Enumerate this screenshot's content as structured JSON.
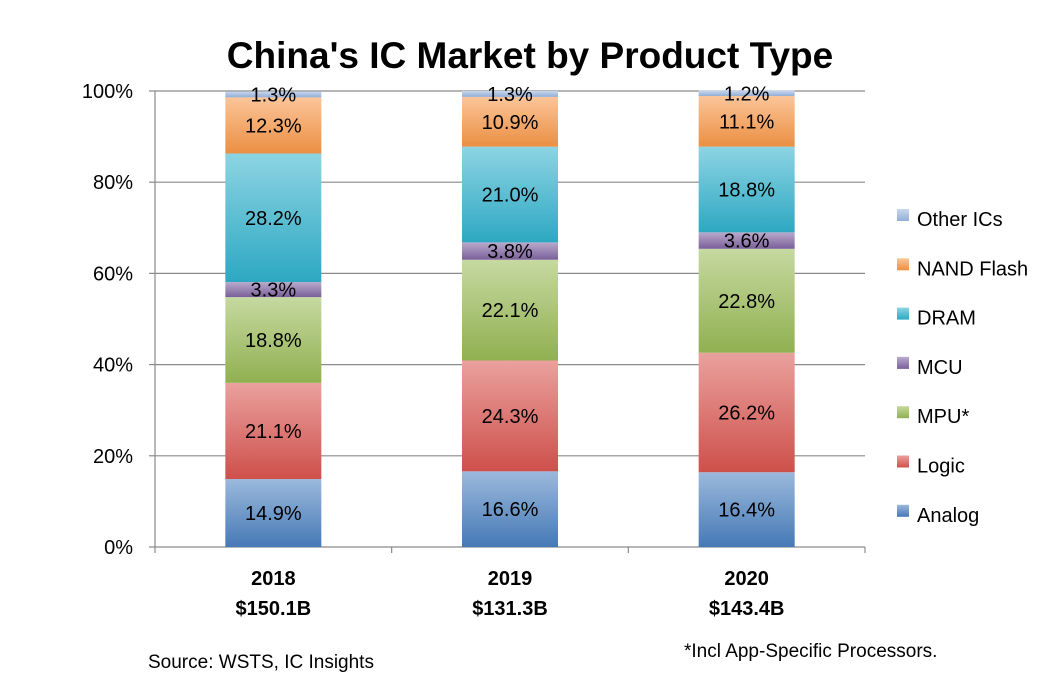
{
  "chart_data": {
    "type": "bar",
    "stacked": true,
    "title": "China's IC Market by Product Type",
    "categories": [
      "2018",
      "2019",
      "2020"
    ],
    "category_totals": [
      "$150.1B",
      "$131.3B",
      "$143.4B"
    ],
    "ylim": [
      0,
      100
    ],
    "yticks": [
      "0%",
      "20%",
      "40%",
      "60%",
      "80%",
      "100%"
    ],
    "grid": true,
    "legend_position": "right",
    "series": [
      {
        "name": "Analog",
        "values": [
          14.9,
          16.6,
          16.4
        ],
        "labels": [
          "14.9%",
          "16.6%",
          "16.4%"
        ],
        "color": "#4a7fc0"
      },
      {
        "name": "Logic",
        "values": [
          21.1,
          24.3,
          26.2
        ],
        "labels": [
          "21.1%",
          "24.3%",
          "26.2%"
        ],
        "color": "#d9544f"
      },
      {
        "name": "MPU*",
        "values": [
          18.8,
          22.1,
          22.8
        ],
        "labels": [
          "18.8%",
          "22.1%",
          "22.8%"
        ],
        "color": "#98b954"
      },
      {
        "name": "MCU",
        "values": [
          3.3,
          3.8,
          3.6
        ],
        "labels": [
          "3.3%",
          "3.8%",
          "3.6%"
        ],
        "color": "#8064a2"
      },
      {
        "name": "DRAM",
        "values": [
          28.2,
          21.0,
          18.8
        ],
        "labels": [
          "28.2%",
          "21.0%",
          "18.8%"
        ],
        "color": "#2fb1cc"
      },
      {
        "name": "NAND Flash",
        "values": [
          12.3,
          10.9,
          11.1
        ],
        "labels": [
          "12.3%",
          "10.9%",
          "11.1%"
        ],
        "color": "#f79646"
      },
      {
        "name": "Other ICs",
        "values": [
          1.3,
          1.3,
          1.2
        ],
        "labels": [
          "1.3%",
          "1.3%",
          "1.2%"
        ],
        "color": "#9bb7e0"
      }
    ],
    "footnote": "*Incl App-Specific Processors.",
    "source": "Source:  WSTS, IC Insights"
  }
}
